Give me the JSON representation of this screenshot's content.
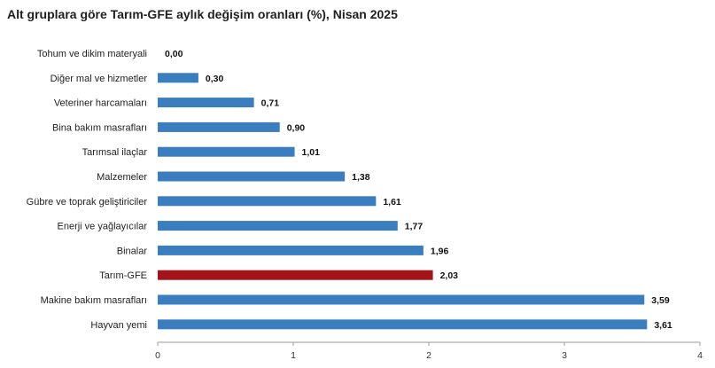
{
  "chart_data": {
    "type": "bar",
    "orientation": "horizontal",
    "title": "Alt gruplara göre Tarım-GFE aylık değişim oranları (%), Nisan 2025",
    "categories": [
      "Tohum ve dikim materyali",
      "Diğer mal ve hizmetler",
      "Veteriner harcamaları",
      "Bina bakım masrafları",
      "Tarımsal ilaçlar",
      "Malzemeler",
      "Gübre ve toprak geliştiriciler",
      "Enerji  ve yağlayıcılar",
      "Binalar",
      "Tarım-GFE",
      "Makine bakım masrafları",
      "Hayvan yemi"
    ],
    "values": [
      0.0,
      0.3,
      0.71,
      0.9,
      1.01,
      1.38,
      1.61,
      1.77,
      1.96,
      2.03,
      3.59,
      3.61
    ],
    "value_labels": [
      "0,00",
      "0,30",
      "0,71",
      "0,90",
      "1,01",
      "1,38",
      "1,61",
      "1,77",
      "1,96",
      "2,03",
      "3,59",
      "3,61"
    ],
    "xlim": [
      0,
      4
    ],
    "x_ticks": [
      0,
      1,
      2,
      3,
      4
    ],
    "x_tick_labels": [
      "0",
      "1",
      "2",
      "3",
      "4"
    ],
    "xlabel": "",
    "ylabel": "",
    "grid": false,
    "legend": "none",
    "bar_color": "#3a7ebf",
    "highlight_category": "Tarım-GFE",
    "highlight_color": "#a3151b"
  }
}
